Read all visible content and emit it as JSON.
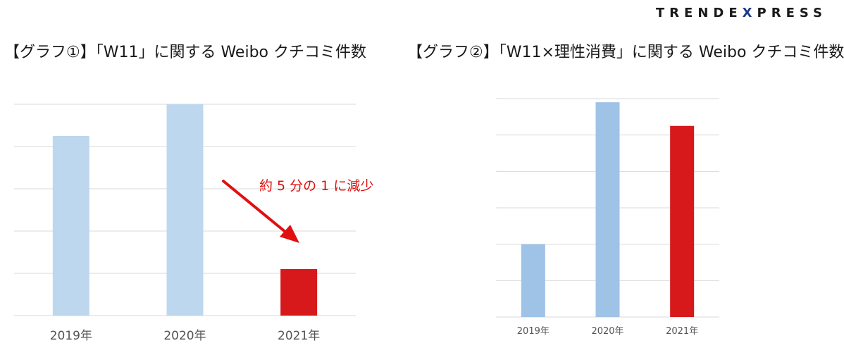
{
  "brand": {
    "prefix": "TRENDE",
    "x": "X",
    "suffix": "PRESS"
  },
  "chart_data": [
    {
      "type": "bar",
      "title": "【グラフ①】「W11」に関する Weibo クチコミ件数",
      "categories": [
        "2019年",
        "2020年",
        "2021年"
      ],
      "values": [
        85,
        100,
        22
      ],
      "colors": [
        "#bdd7ee",
        "#bdd7ee",
        "#d7191c"
      ],
      "ylim": [
        0,
        100
      ],
      "grid": true,
      "annotation": {
        "text": "約 5 分の 1 に減少",
        "color": "#e01010"
      }
    },
    {
      "type": "bar",
      "title": "【グラフ②】「W11×理性消費」に関する Weibo クチコミ件数",
      "categories": [
        "2019年",
        "2020年",
        "2021年"
      ],
      "values": [
        20,
        59,
        52.5
      ],
      "colors": [
        "#9fc2e7",
        "#9fc2e7",
        "#d7191c"
      ],
      "ylim": [
        0,
        60
      ],
      "grid": true
    }
  ]
}
